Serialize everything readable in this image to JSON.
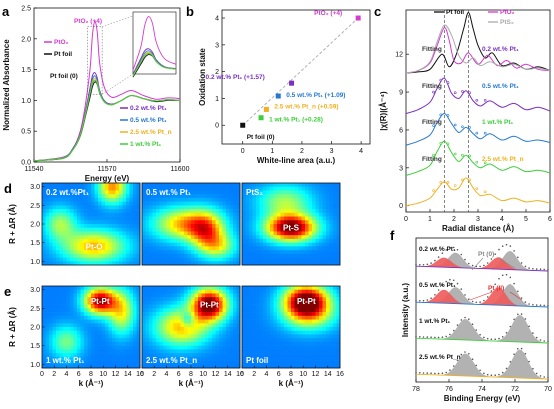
{
  "chart_data": [
    {
      "panel": "a",
      "type": "line",
      "xlabel": "Energy (eV)",
      "ylabel": "Normalized Absorbance",
      "xlim": [
        11540,
        11600
      ],
      "ylim": [
        0,
        2.5
      ],
      "xticks": [
        "11540",
        "11570",
        "11600"
      ],
      "yticks": [
        "0.0",
        "0.5",
        "1.0",
        "1.5",
        "2.0",
        "2.5"
      ],
      "annotations": [
        "PtO₂ (+4)",
        "Pt foil (0)"
      ],
      "series": [
        {
          "name": "PtO₂",
          "color": "#d63ad0",
          "x": [
            11540,
            11552,
            11556,
            11559,
            11561,
            11563,
            11564,
            11565,
            11566,
            11567,
            11569,
            11572,
            11576,
            11580,
            11585,
            11590,
            11595,
            11600
          ],
          "values": [
            0.02,
            0.08,
            0.22,
            0.5,
            0.9,
            1.5,
            2.05,
            2.28,
            2.1,
            1.6,
            1.2,
            1.05,
            1.1,
            1.16,
            1.08,
            1.02,
            1.04,
            1.03
          ]
        },
        {
          "name": "Pt foil",
          "color": "#111111",
          "x": [
            11540,
            11552,
            11556,
            11559,
            11561,
            11563,
            11564,
            11565,
            11566,
            11567,
            11569,
            11572,
            11576,
            11580,
            11585,
            11590,
            11595,
            11600
          ],
          "values": [
            0.02,
            0.06,
            0.2,
            0.42,
            0.72,
            1.05,
            1.22,
            1.3,
            1.26,
            1.12,
            0.98,
            0.93,
            1.0,
            1.08,
            1.03,
            0.98,
            1.0,
            1.0
          ]
        },
        {
          "name": "0.2 wt.% Pt₁",
          "color": "#7b2fbf",
          "x": [
            11540,
            11552,
            11556,
            11559,
            11561,
            11563,
            11564,
            11565,
            11566,
            11567,
            11569,
            11572,
            11576,
            11580,
            11585,
            11590,
            11595,
            11600
          ],
          "values": [
            0.02,
            0.07,
            0.22,
            0.46,
            0.8,
            1.2,
            1.4,
            1.45,
            1.36,
            1.16,
            0.99,
            0.94,
            1.0,
            1.08,
            1.03,
            0.99,
            1.01,
            1.0
          ]
        },
        {
          "name": "0.5 wt.% Pt₁",
          "color": "#2478d4",
          "x": [
            11540,
            11552,
            11556,
            11559,
            11561,
            11563,
            11564,
            11565,
            11566,
            11567,
            11569,
            11572,
            11576,
            11580,
            11585,
            11590,
            11595,
            11600
          ],
          "values": [
            0.02,
            0.07,
            0.21,
            0.45,
            0.78,
            1.15,
            1.34,
            1.4,
            1.32,
            1.14,
            0.98,
            0.93,
            1.0,
            1.08,
            1.03,
            0.99,
            1.01,
            1.0
          ]
        },
        {
          "name": "2.5 wt.% Pt_n",
          "color": "#f2b01e",
          "x": [
            11540,
            11552,
            11556,
            11559,
            11561,
            11563,
            11564,
            11565,
            11566,
            11567,
            11569,
            11572,
            11576,
            11580,
            11585,
            11590,
            11595,
            11600
          ],
          "values": [
            0.02,
            0.065,
            0.2,
            0.44,
            0.76,
            1.12,
            1.3,
            1.36,
            1.29,
            1.12,
            0.97,
            0.93,
            1.0,
            1.08,
            1.03,
            0.99,
            1.01,
            1.0
          ]
        },
        {
          "name": "1 wt.% Pt₁",
          "color": "#3ccf3a",
          "x": [
            11540,
            11552,
            11556,
            11559,
            11561,
            11563,
            11564,
            11565,
            11566,
            11567,
            11569,
            11572,
            11576,
            11580,
            11585,
            11590,
            11595,
            11600
          ],
          "values": [
            0.02,
            0.065,
            0.2,
            0.43,
            0.74,
            1.1,
            1.27,
            1.33,
            1.27,
            1.11,
            0.97,
            0.93,
            1.0,
            1.08,
            1.03,
            0.99,
            1.01,
            1.0
          ]
        }
      ]
    },
    {
      "panel": "b",
      "type": "scatter",
      "xlabel": "White-line area (a.u.)",
      "ylabel": "Oxidation state",
      "xlim": [
        -0.7,
        4.3
      ],
      "ylim": [
        -0.7,
        4.3
      ],
      "xticks": [
        "0",
        "1",
        "2",
        "3",
        "4"
      ],
      "yticks": [
        "0",
        "1",
        "2",
        "3",
        "4"
      ],
      "points": [
        {
          "label": "Pt foil (0)",
          "x": 0.0,
          "y": 0.0,
          "color": "#111111"
        },
        {
          "label": "1 wt.% Pt₁ (+0.28)",
          "x": 0.62,
          "y": 0.28,
          "color": "#3ccf3a"
        },
        {
          "label": "2.5 wt.% Pt_n (+0.59)",
          "x": 0.8,
          "y": 0.59,
          "color": "#f2b01e"
        },
        {
          "label": "0.5 wt.% Pt₁ (+1.09)",
          "x": 1.2,
          "y": 1.09,
          "color": "#2478d4"
        },
        {
          "label": "0.2 wt.% Pt₁ (+1.57)",
          "x": 1.65,
          "y": 1.57,
          "color": "#7b2fbf"
        },
        {
          "label": "PtO₂ (+4)",
          "x": 3.9,
          "y": 4.0,
          "color": "#d63ad0"
        }
      ],
      "fit_line": {
        "x": [
          0,
          3.9
        ],
        "y": [
          0,
          4.0
        ],
        "color": "#aaaaaa"
      }
    },
    {
      "panel": "c",
      "type": "line",
      "xlabel": "Radial distance (Å)",
      "ylabel": "|χ(R)|(Å⁻⁴)",
      "xlim": [
        0,
        6
      ],
      "xticks": [
        "0",
        "1",
        "2",
        "3",
        "4",
        "5",
        "6"
      ],
      "yticks": [
        "0",
        "3",
        "6",
        "9",
        "12"
      ],
      "legend": [
        "Pt foil",
        "PtO₂",
        "PtS₂"
      ],
      "labels": [
        "Fitting",
        "0.2 wt.% Pt₁",
        "0.5 wt.% Pt₁",
        "1 wt.% Pt₁",
        "2.5 wt.% Pt_n"
      ],
      "series": [
        {
          "name": "Pt foil",
          "color": "#111111",
          "offset": 10.5,
          "x": [
            0,
            0.5,
            1,
            1.5,
            1.8,
            2.1,
            2.4,
            2.6,
            2.8,
            3.0,
            3.3,
            3.6,
            4.0,
            4.5,
            5.0,
            5.5,
            6.0
          ],
          "values": [
            0,
            0.1,
            0.3,
            1.5,
            0.5,
            1.5,
            3.5,
            4.8,
            3.5,
            2.2,
            1.2,
            1.6,
            0.6,
            0.8,
            0.3,
            0.5,
            0.2
          ]
        },
        {
          "name": "PtO₂",
          "color": "#d63ad0",
          "offset": 10.5,
          "x": [
            0,
            0.5,
            1,
            1.3,
            1.6,
            1.8,
            2.0,
            2.3,
            2.6,
            3.0,
            3.4,
            3.8,
            4.2,
            4.6,
            5.0,
            5.5,
            6.0
          ],
          "values": [
            0,
            0.2,
            0.8,
            2.2,
            3.6,
            2.6,
            1.0,
            0.8,
            1.6,
            0.7,
            1.4,
            0.6,
            1.0,
            0.4,
            0.7,
            0.3,
            0.2
          ]
        },
        {
          "name": "PtS₂",
          "color": "#aaaaaa",
          "offset": 10.5,
          "x": [
            0,
            0.5,
            1,
            1.3,
            1.6,
            1.9,
            2.2,
            2.5,
            2.8,
            3.1,
            3.5,
            4.0,
            4.5,
            5.0,
            5.5,
            6.0
          ],
          "values": [
            0,
            0.2,
            0.9,
            2.5,
            3.8,
            3.0,
            1.4,
            0.8,
            1.2,
            0.6,
            0.9,
            0.5,
            0.7,
            0.3,
            0.4,
            0.2
          ]
        },
        {
          "name": "0.2 wt.% Pt₁",
          "color": "#7b2fbf",
          "offset": 7.3,
          "x": [
            0,
            0.5,
            1,
            1.3,
            1.6,
            1.9,
            2.2,
            2.5,
            2.8,
            3.1,
            3.5,
            4.0,
            4.5,
            5.0,
            5.5,
            6.0
          ],
          "values": [
            0,
            0.3,
            0.9,
            2.0,
            2.8,
            1.6,
            1.2,
            1.8,
            1.0,
            0.6,
            1.0,
            0.5,
            0.8,
            0.3,
            0.5,
            0.2
          ]
        },
        {
          "name": "0.5 wt.% Pt₁",
          "color": "#2478d4",
          "offset": 4.8,
          "x": [
            0,
            0.5,
            1,
            1.3,
            1.6,
            1.9,
            2.2,
            2.5,
            2.8,
            3.1,
            3.5,
            4.0,
            4.5,
            5.0,
            5.5,
            6.0
          ],
          "values": [
            0,
            0.3,
            0.8,
            1.8,
            2.5,
            1.7,
            1.0,
            1.4,
            0.9,
            0.5,
            0.9,
            0.4,
            0.7,
            0.3,
            0.4,
            0.2
          ]
        },
        {
          "name": "1 wt.% Pt₁",
          "color": "#3ccf3a",
          "offset": 2.4,
          "x": [
            0,
            0.5,
            1,
            1.3,
            1.6,
            1.9,
            2.2,
            2.5,
            2.8,
            3.1,
            3.5,
            4.0,
            4.5,
            5.0,
            5.5,
            6.0
          ],
          "values": [
            0,
            0.3,
            0.8,
            1.9,
            2.7,
            1.8,
            1.1,
            1.6,
            1.0,
            0.6,
            0.9,
            0.4,
            0.7,
            0.3,
            0.4,
            0.2
          ]
        },
        {
          "name": "2.5 wt.% Pt_n",
          "color": "#f2b01e",
          "offset": 0,
          "x": [
            0,
            0.5,
            1,
            1.3,
            1.6,
            1.9,
            2.2,
            2.5,
            2.8,
            3.1,
            3.5,
            4.0,
            4.5,
            5.0,
            5.5,
            6.0
          ],
          "values": [
            0,
            0.2,
            0.6,
            1.3,
            1.9,
            1.3,
            1.4,
            2.2,
            1.4,
            0.8,
            0.9,
            0.4,
            0.6,
            0.3,
            0.4,
            0.2
          ]
        }
      ]
    },
    {
      "panel": "d-e",
      "type": "heatmap",
      "xlabel": "k (Å⁻¹)",
      "ylabel": "R + ΔR (Å)",
      "xticks": [
        "0",
        "2",
        "4",
        "6",
        "8",
        "10",
        "12",
        "14",
        "16"
      ],
      "yticks": [
        "1.0",
        "1.5",
        "2.0",
        "2.5",
        "3.0"
      ],
      "maps": [
        {
          "id": "d1",
          "label": "0.2 wt.%Pt₁",
          "annotation": "Pt-O",
          "peaks": [
            {
              "k": 8.5,
              "r": 1.4,
              "amp": 0.55,
              "sk": 3.5,
              "sr": 0.3
            },
            {
              "k": 11.5,
              "r": 3.0,
              "amp": 0.6,
              "sk": 1.6,
              "sr": 0.3
            },
            {
              "k": 3.0,
              "r": 2.0,
              "amp": 0.35,
              "sk": 1.8,
              "sr": 0.3
            }
          ]
        },
        {
          "id": "d2",
          "label": "0.5 wt.% Pt₁",
          "annotation": "",
          "peaks": [
            {
              "k": 7.0,
              "r": 2.0,
              "amp": 0.55,
              "sk": 3.5,
              "sr": 0.3
            },
            {
              "k": 10.5,
              "r": 1.8,
              "amp": 0.5,
              "sk": 2.0,
              "sr": 0.35
            },
            {
              "k": 12.5,
              "r": 1.4,
              "amp": 0.35,
              "sk": 2.0,
              "sr": 0.25
            }
          ]
        },
        {
          "id": "d3",
          "label": "PtS₂",
          "annotation": "Pt-S",
          "peaks": [
            {
              "k": 8.0,
              "r": 1.9,
              "amp": 1.0,
              "sk": 2.8,
              "sr": 0.25
            },
            {
              "k": 7.0,
              "r": 2.6,
              "amp": 0.35,
              "sk": 3.0,
              "sr": 0.3
            }
          ]
        },
        {
          "id": "e1",
          "label": "1 wt.% Pt₁",
          "annotation": "Pt-Pt",
          "peaks": [
            {
              "k": 9.5,
              "r": 2.7,
              "amp": 0.9,
              "sk": 1.8,
              "sr": 0.25
            },
            {
              "k": 13.0,
              "r": 2.4,
              "amp": 0.45,
              "sk": 1.5,
              "sr": 0.4
            },
            {
              "k": 4.0,
              "r": 1.6,
              "amp": 0.3,
              "sk": 1.8,
              "sr": 0.3
            }
          ]
        },
        {
          "id": "e2",
          "label": "2.5 wt.% Pt_n",
          "annotation": "Pt-Pt",
          "peaks": [
            {
              "k": 11.0,
              "r": 2.6,
              "amp": 1.0,
              "sk": 2.0,
              "sr": 0.3
            },
            {
              "k": 6.5,
              "r": 2.0,
              "amp": 0.55,
              "sk": 3.0,
              "sr": 0.35
            },
            {
              "k": 7.5,
              "r": 2.2,
              "amp": -0.3,
              "sk": 0.8,
              "sr": 0.15
            }
          ]
        },
        {
          "id": "e3",
          "label": "Pt foil",
          "annotation": "Pt-Pt",
          "peaks": [
            {
              "k": 10.5,
              "r": 2.7,
              "amp": 1.0,
              "sk": 2.5,
              "sr": 0.3
            },
            {
              "k": 11.0,
              "r": 2.3,
              "amp": 0.35,
              "sk": 3.0,
              "sr": 0.3
            }
          ]
        }
      ]
    },
    {
      "panel": "f",
      "type": "line",
      "xlabel": "Binding Energy (eV)",
      "ylabel": "Intensity (a.u.)",
      "xlim": [
        78,
        70
      ],
      "xticks": [
        "78",
        "76",
        "74",
        "72",
        "70"
      ],
      "annotations": [
        "Pt (0)",
        "Pt (II)"
      ],
      "spectra": [
        {
          "label": "0.2 wt.% Pt₁",
          "baseline_color": "#7b2fbf",
          "components": [
            {
              "center": 75.6,
              "height": 0.5,
              "width": 0.45,
              "fill": "#aaaaaa"
            },
            {
              "center": 72.3,
              "height": 0.62,
              "width": 0.45,
              "fill": "#aaaaaa"
            },
            {
              "center": 76.3,
              "height": 0.32,
              "width": 0.45,
              "fill": "#ef5a5a"
            },
            {
              "center": 73.0,
              "height": 0.4,
              "width": 0.45,
              "fill": "#ef5a5a"
            }
          ]
        },
        {
          "label": "0.5 wt.% Pt₁",
          "baseline_color": "#2478d4",
          "components": [
            {
              "center": 75.6,
              "height": 0.55,
              "width": 0.45,
              "fill": "#aaaaaa"
            },
            {
              "center": 72.3,
              "height": 0.72,
              "width": 0.45,
              "fill": "#aaaaaa"
            },
            {
              "center": 76.3,
              "height": 0.45,
              "width": 0.45,
              "fill": "#ef5a5a"
            },
            {
              "center": 73.0,
              "height": 0.6,
              "width": 0.45,
              "fill": "#ef5a5a"
            }
          ]
        },
        {
          "label": "1 wt.% Pt₁",
          "baseline_color": "#3ccf3a",
          "components": [
            {
              "center": 75.0,
              "height": 0.7,
              "width": 0.5,
              "fill": "#aaaaaa"
            },
            {
              "center": 71.7,
              "height": 0.9,
              "width": 0.5,
              "fill": "#aaaaaa"
            }
          ]
        },
        {
          "label": "2.5 wt.% Pt_n",
          "baseline_color": "#f2b01e",
          "components": [
            {
              "center": 75.0,
              "height": 0.75,
              "width": 0.5,
              "fill": "#aaaaaa"
            },
            {
              "center": 71.7,
              "height": 0.95,
              "width": 0.5,
              "fill": "#aaaaaa"
            }
          ]
        }
      ]
    }
  ],
  "panels": {
    "a": {
      "letter": "a"
    },
    "b": {
      "letter": "b"
    },
    "c": {
      "letter": "c"
    },
    "d": {
      "letter": "d"
    },
    "e": {
      "letter": "e"
    },
    "f": {
      "letter": "f"
    }
  },
  "colors": {
    "pto2": "#d63ad0",
    "ptfoil": "#111111",
    "p02": "#7b2fbf",
    "p05": "#2478d4",
    "p1": "#3ccf3a",
    "p25": "#f2b01e",
    "pts2": "#aaaaaa",
    "ptII": "#ef5a5a"
  }
}
